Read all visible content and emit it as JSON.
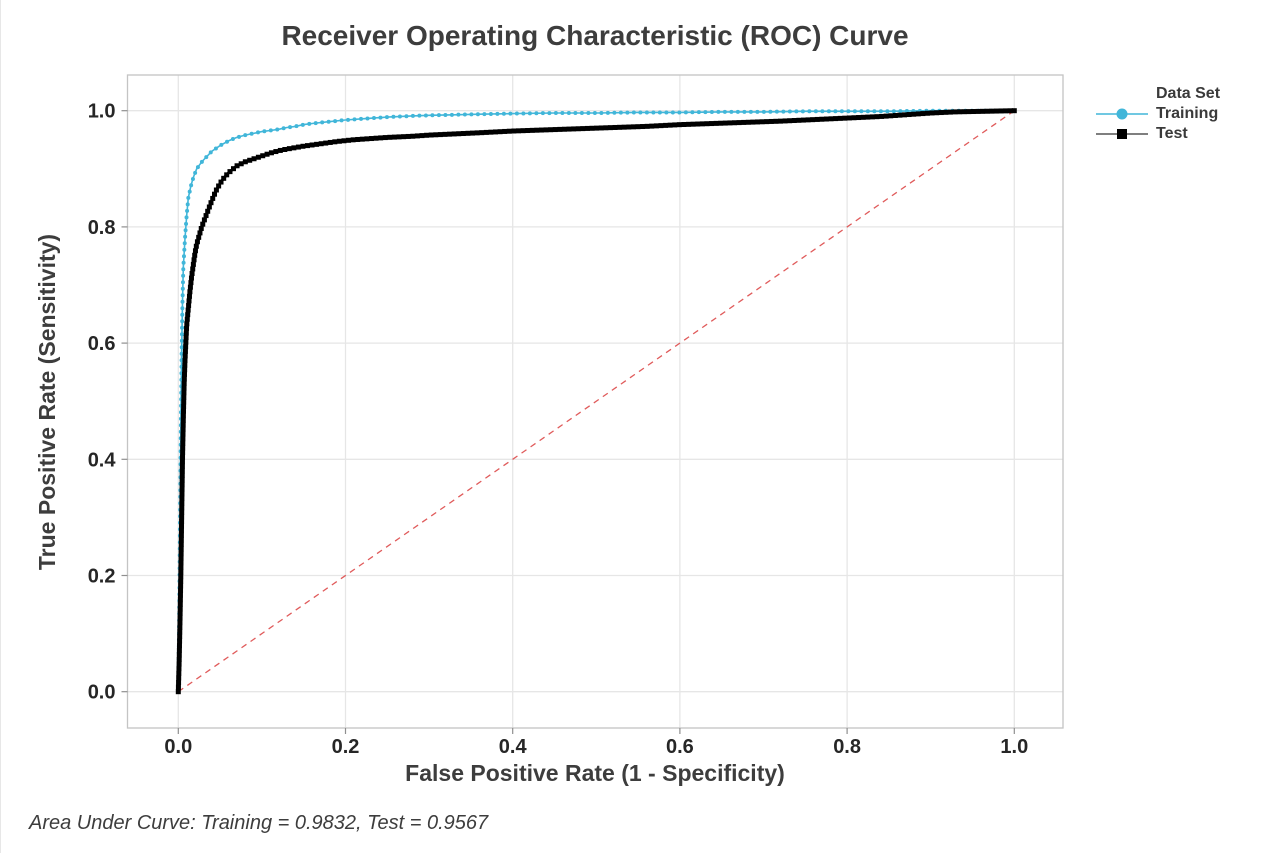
{
  "page": {
    "title": "Receiver Operating Characteristic (ROC) Curve",
    "footnote": "Area Under Curve: Training = 0.9832, Test = 0.9567"
  },
  "legend": {
    "title": "Data Set",
    "items": [
      {
        "label": "Training",
        "marker": "circle",
        "color": "#41b6d9",
        "line_color": "#41b6d9"
      },
      {
        "label": "Test",
        "marker": "square",
        "color": "#000000",
        "line_color": "#555555"
      }
    ]
  },
  "colors": {
    "training": "#41b6d9",
    "test": "#000000",
    "reference_line": "#e05b5b",
    "gridline": "#e6e6e6",
    "plot_border": "#c4c4c4",
    "tick": "#8f8f8f",
    "tick_label": "#262626",
    "text": "#3d3d3d"
  },
  "chart_data": {
    "type": "line",
    "title": "Receiver Operating Characteristic (ROC) Curve",
    "xlabel": "False Positive Rate (1 - Specificity)",
    "ylabel": "True Positive Rate (Sensitivity)",
    "xlim": [
      0,
      1
    ],
    "ylim": [
      0,
      1
    ],
    "xticks": [
      "0.0",
      "0.2",
      "0.4",
      "0.6",
      "0.8",
      "1.0"
    ],
    "yticks": [
      "0.0",
      "0.2",
      "0.4",
      "0.6",
      "0.8",
      "1.0"
    ],
    "grid": true,
    "legend_title": "Data Set",
    "legend_position": "right",
    "footnote": "Area Under Curve: Training = 0.9832, Test = 0.9567",
    "reference_line": {
      "from": [
        0,
        0
      ],
      "to": [
        1,
        1
      ],
      "style": "dashed",
      "color": "#e05b5b"
    },
    "series": [
      {
        "name": "Training",
        "auc": 0.9832,
        "marker": "circle",
        "color": "#41b6d9",
        "points": [
          [
            0,
            0
          ],
          [
            0.001,
            0.12
          ],
          [
            0.002,
            0.28
          ],
          [
            0.003,
            0.45
          ],
          [
            0.004,
            0.58
          ],
          [
            0.005,
            0.67
          ],
          [
            0.006,
            0.73
          ],
          [
            0.008,
            0.78
          ],
          [
            0.01,
            0.82
          ],
          [
            0.012,
            0.85
          ],
          [
            0.015,
            0.87
          ],
          [
            0.018,
            0.885
          ],
          [
            0.022,
            0.9
          ],
          [
            0.026,
            0.908
          ],
          [
            0.03,
            0.915
          ],
          [
            0.04,
            0.93
          ],
          [
            0.05,
            0.94
          ],
          [
            0.06,
            0.948
          ],
          [
            0.07,
            0.954
          ],
          [
            0.08,
            0.958
          ],
          [
            0.09,
            0.961
          ],
          [
            0.1,
            0.964
          ],
          [
            0.11,
            0.966
          ],
          [
            0.12,
            0.968
          ],
          [
            0.13,
            0.971
          ],
          [
            0.14,
            0.973
          ],
          [
            0.15,
            0.976
          ],
          [
            0.16,
            0.978
          ],
          [
            0.18,
            0.981
          ],
          [
            0.2,
            0.984
          ],
          [
            0.22,
            0.986
          ],
          [
            0.25,
            0.989
          ],
          [
            0.28,
            0.991
          ],
          [
            0.3,
            0.992
          ],
          [
            0.33,
            0.993
          ],
          [
            0.36,
            0.994
          ],
          [
            0.4,
            0.995
          ],
          [
            0.45,
            0.996
          ],
          [
            0.5,
            0.996
          ],
          [
            0.55,
            0.997
          ],
          [
            0.6,
            0.997
          ],
          [
            0.65,
            0.998
          ],
          [
            0.7,
            0.998
          ],
          [
            0.75,
            0.999
          ],
          [
            0.8,
            0.999
          ],
          [
            0.85,
            0.999
          ],
          [
            0.9,
            1
          ],
          [
            1,
            1
          ]
        ]
      },
      {
        "name": "Test",
        "auc": 0.9567,
        "marker": "square",
        "color": "#000000",
        "points": [
          [
            0,
            0
          ],
          [
            0.001,
            0.05
          ],
          [
            0.002,
            0.12
          ],
          [
            0.003,
            0.2
          ],
          [
            0.004,
            0.3
          ],
          [
            0.005,
            0.4
          ],
          [
            0.006,
            0.47
          ],
          [
            0.007,
            0.53
          ],
          [
            0.008,
            0.57
          ],
          [
            0.009,
            0.6
          ],
          [
            0.01,
            0.63
          ],
          [
            0.012,
            0.66
          ],
          [
            0.014,
            0.69
          ],
          [
            0.016,
            0.715
          ],
          [
            0.018,
            0.735
          ],
          [
            0.02,
            0.755
          ],
          [
            0.022,
            0.77
          ],
          [
            0.025,
            0.785
          ],
          [
            0.028,
            0.8
          ],
          [
            0.032,
            0.815
          ],
          [
            0.036,
            0.83
          ],
          [
            0.04,
            0.845
          ],
          [
            0.045,
            0.862
          ],
          [
            0.05,
            0.875
          ],
          [
            0.055,
            0.885
          ],
          [
            0.06,
            0.893
          ],
          [
            0.07,
            0.905
          ],
          [
            0.08,
            0.912
          ],
          [
            0.09,
            0.917
          ],
          [
            0.1,
            0.922
          ],
          [
            0.11,
            0.927
          ],
          [
            0.12,
            0.931
          ],
          [
            0.13,
            0.934
          ],
          [
            0.15,
            0.939
          ],
          [
            0.17,
            0.943
          ],
          [
            0.19,
            0.947
          ],
          [
            0.21,
            0.95
          ],
          [
            0.23,
            0.952
          ],
          [
            0.25,
            0.954
          ],
          [
            0.28,
            0.956
          ],
          [
            0.3,
            0.958
          ],
          [
            0.33,
            0.96
          ],
          [
            0.36,
            0.962
          ],
          [
            0.4,
            0.965
          ],
          [
            0.44,
            0.967
          ],
          [
            0.48,
            0.969
          ],
          [
            0.52,
            0.971
          ],
          [
            0.56,
            0.973
          ],
          [
            0.6,
            0.976
          ],
          [
            0.64,
            0.978
          ],
          [
            0.68,
            0.98
          ],
          [
            0.72,
            0.982
          ],
          [
            0.75,
            0.984
          ],
          [
            0.78,
            0.986
          ],
          [
            0.81,
            0.988
          ],
          [
            0.84,
            0.99
          ],
          [
            0.87,
            0.993
          ],
          [
            0.9,
            0.996
          ],
          [
            0.93,
            0.998
          ],
          [
            1,
            1
          ]
        ]
      }
    ]
  }
}
